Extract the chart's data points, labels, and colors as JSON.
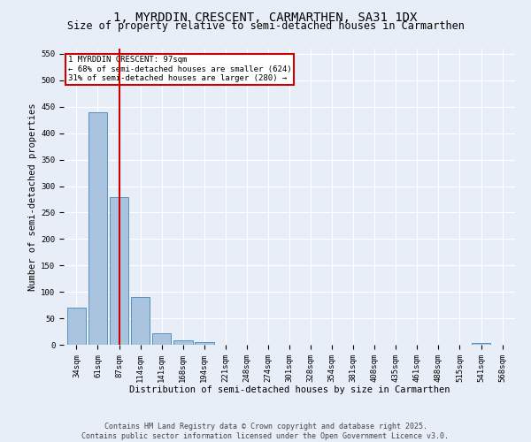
{
  "title": "1, MYRDDIN CRESCENT, CARMARTHEN, SA31 1DX",
  "subtitle": "Size of property relative to semi-detached houses in Carmarthen",
  "xlabel": "Distribution of semi-detached houses by size in Carmarthen",
  "ylabel": "Number of semi-detached properties",
  "categories": [
    "34sqm",
    "61sqm",
    "87sqm",
    "114sqm",
    "141sqm",
    "168sqm",
    "194sqm",
    "221sqm",
    "248sqm",
    "274sqm",
    "301sqm",
    "328sqm",
    "354sqm",
    "381sqm",
    "408sqm",
    "435sqm",
    "461sqm",
    "488sqm",
    "515sqm",
    "541sqm",
    "568sqm"
  ],
  "values": [
    70,
    440,
    280,
    90,
    22,
    9,
    5,
    0,
    0,
    0,
    0,
    0,
    0,
    0,
    0,
    0,
    0,
    0,
    0,
    4,
    0
  ],
  "bar_color": "#aac4e0",
  "bar_edge_color": "#5590c0",
  "background_color": "#e8eef8",
  "grid_color": "#ffffff",
  "property_line_x": 2,
  "property_label": "1 MYRDDIN CRESCENT: 97sqm",
  "annotation_line1": "← 68% of semi-detached houses are smaller (624)",
  "annotation_line2": "31% of semi-detached houses are larger (280) →",
  "annotation_box_edge": "#cc0000",
  "vline_color": "#cc0000",
  "ylim": [
    0,
    560
  ],
  "yticks": [
    0,
    50,
    100,
    150,
    200,
    250,
    300,
    350,
    400,
    450,
    500,
    550
  ],
  "footer_line1": "Contains HM Land Registry data © Crown copyright and database right 2025.",
  "footer_line2": "Contains public sector information licensed under the Open Government Licence v3.0.",
  "title_fontsize": 10,
  "subtitle_fontsize": 8.5,
  "axis_label_fontsize": 7.5,
  "tick_fontsize": 6.5,
  "footer_fontsize": 6.0,
  "annotation_fontsize": 6.5
}
